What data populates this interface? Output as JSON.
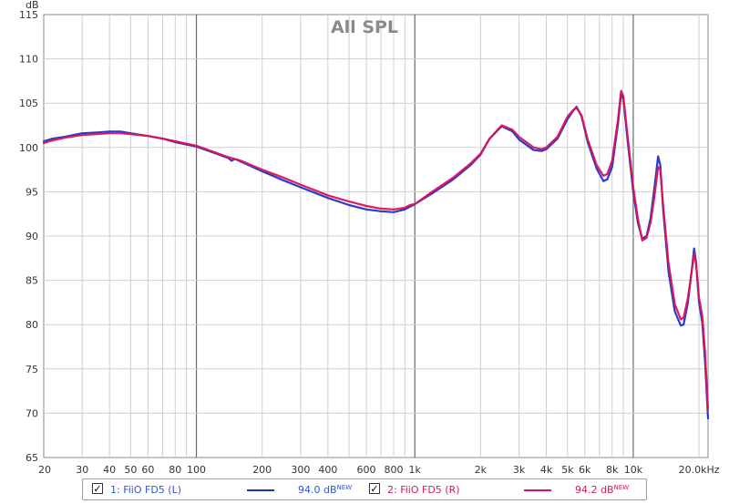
{
  "chart_data": {
    "type": "line",
    "title": "All SPL",
    "ylabel": "dB",
    "xlabel": "",
    "x_scale": "log",
    "xlim": [
      20,
      22000
    ],
    "ylim": [
      65,
      115
    ],
    "y_ticks": [
      65,
      70,
      75,
      80,
      85,
      90,
      95,
      100,
      105,
      110,
      115
    ],
    "x_ticks": [
      {
        "value": 20,
        "label": "20"
      },
      {
        "value": 30,
        "label": "30"
      },
      {
        "value": 40,
        "label": "40"
      },
      {
        "value": 50,
        "label": "50"
      },
      {
        "value": 60,
        "label": "60"
      },
      {
        "value": 80,
        "label": "80"
      },
      {
        "value": 100,
        "label": "100"
      },
      {
        "value": 200,
        "label": "200"
      },
      {
        "value": 300,
        "label": "300"
      },
      {
        "value": 400,
        "label": "400"
      },
      {
        "value": 600,
        "label": "600"
      },
      {
        "value": 800,
        "label": "800"
      },
      {
        "value": 1000,
        "label": "1k"
      },
      {
        "value": 2000,
        "label": "2k"
      },
      {
        "value": 3000,
        "label": "3k"
      },
      {
        "value": 4000,
        "label": "4k"
      },
      {
        "value": 5000,
        "label": "5k"
      },
      {
        "value": 6000,
        "label": "6k"
      },
      {
        "value": 8000,
        "label": "8k"
      },
      {
        "value": 10000,
        "label": "10k"
      },
      {
        "value": 20000,
        "label": "20.0kHz"
      }
    ],
    "grid": true,
    "series": [
      {
        "name": "1: FiiO FD5 (L)",
        "color": "#1a33cc",
        "points": [
          [
            20,
            100.7
          ],
          [
            22,
            101.0
          ],
          [
            25,
            101.2
          ],
          [
            30,
            101.6
          ],
          [
            35,
            101.7
          ],
          [
            40,
            101.8
          ],
          [
            45,
            101.8
          ],
          [
            50,
            101.6
          ],
          [
            60,
            101.3
          ],
          [
            70,
            101.0
          ],
          [
            80,
            100.6
          ],
          [
            100,
            100.1
          ],
          [
            120,
            99.4
          ],
          [
            140,
            98.8
          ],
          [
            145,
            98.5
          ],
          [
            150,
            98.7
          ],
          [
            160,
            98.4
          ],
          [
            200,
            97.3
          ],
          [
            250,
            96.3
          ],
          [
            300,
            95.5
          ],
          [
            400,
            94.3
          ],
          [
            500,
            93.5
          ],
          [
            600,
            93.0
          ],
          [
            700,
            92.8
          ],
          [
            800,
            92.7
          ],
          [
            900,
            93.0
          ],
          [
            1000,
            93.6
          ],
          [
            1200,
            94.8
          ],
          [
            1500,
            96.4
          ],
          [
            1800,
            98.0
          ],
          [
            2000,
            99.2
          ],
          [
            2200,
            101.0
          ],
          [
            2500,
            102.4
          ],
          [
            2800,
            101.8
          ],
          [
            3000,
            100.9
          ],
          [
            3500,
            99.7
          ],
          [
            3800,
            99.6
          ],
          [
            4000,
            99.8
          ],
          [
            4500,
            101.0
          ],
          [
            5000,
            103.2
          ],
          [
            5300,
            104.1
          ],
          [
            5500,
            104.6
          ],
          [
            5800,
            103.5
          ],
          [
            6200,
            100.5
          ],
          [
            6800,
            97.6
          ],
          [
            7300,
            96.2
          ],
          [
            7600,
            96.4
          ],
          [
            8000,
            97.8
          ],
          [
            8500,
            102.5
          ],
          [
            8800,
            106.0
          ],
          [
            9000,
            105.5
          ],
          [
            9400,
            101.0
          ],
          [
            10000,
            95.0
          ],
          [
            10500,
            91.5
          ],
          [
            11000,
            89.7
          ],
          [
            11500,
            90.0
          ],
          [
            12000,
            92.0
          ],
          [
            12500,
            95.5
          ],
          [
            13000,
            99.0
          ],
          [
            13300,
            98.0
          ],
          [
            13700,
            93.0
          ],
          [
            14500,
            86.0
          ],
          [
            15500,
            81.5
          ],
          [
            16500,
            79.9
          ],
          [
            17000,
            80.0
          ],
          [
            17800,
            82.5
          ],
          [
            18500,
            86.0
          ],
          [
            19000,
            88.6
          ],
          [
            19400,
            87.0
          ],
          [
            20000,
            82.5
          ],
          [
            20700,
            80.2
          ],
          [
            21300,
            76.0
          ],
          [
            22000,
            69.4
          ]
        ]
      },
      {
        "name": "2: FiiO FD5 (R)",
        "color": "#dd1155",
        "points": [
          [
            20,
            100.5
          ],
          [
            22,
            100.8
          ],
          [
            25,
            101.1
          ],
          [
            30,
            101.4
          ],
          [
            35,
            101.5
          ],
          [
            40,
            101.6
          ],
          [
            45,
            101.6
          ],
          [
            50,
            101.5
          ],
          [
            60,
            101.3
          ],
          [
            70,
            101.0
          ],
          [
            80,
            100.7
          ],
          [
            100,
            100.2
          ],
          [
            120,
            99.5
          ],
          [
            140,
            98.9
          ],
          [
            150,
            98.7
          ],
          [
            160,
            98.5
          ],
          [
            200,
            97.5
          ],
          [
            250,
            96.6
          ],
          [
            300,
            95.8
          ],
          [
            400,
            94.6
          ],
          [
            500,
            93.9
          ],
          [
            600,
            93.4
          ],
          [
            700,
            93.1
          ],
          [
            800,
            93.0
          ],
          [
            900,
            93.2
          ],
          [
            950,
            93.5
          ],
          [
            1000,
            93.6
          ],
          [
            1200,
            95.0
          ],
          [
            1500,
            96.6
          ],
          [
            1800,
            98.2
          ],
          [
            2000,
            99.3
          ],
          [
            2200,
            101.0
          ],
          [
            2500,
            102.5
          ],
          [
            2800,
            102.0
          ],
          [
            3000,
            101.2
          ],
          [
            3500,
            100.0
          ],
          [
            3800,
            99.8
          ],
          [
            4000,
            100.0
          ],
          [
            4500,
            101.2
          ],
          [
            5000,
            103.5
          ],
          [
            5300,
            104.2
          ],
          [
            5500,
            104.5
          ],
          [
            5800,
            103.6
          ],
          [
            6200,
            100.8
          ],
          [
            6800,
            98.0
          ],
          [
            7300,
            96.8
          ],
          [
            7600,
            97.0
          ],
          [
            8000,
            98.5
          ],
          [
            8500,
            103.0
          ],
          [
            8800,
            106.4
          ],
          [
            9000,
            105.8
          ],
          [
            9400,
            101.5
          ],
          [
            10000,
            95.5
          ],
          [
            10500,
            92.0
          ],
          [
            11000,
            89.5
          ],
          [
            11500,
            89.8
          ],
          [
            12000,
            91.5
          ],
          [
            12500,
            94.5
          ],
          [
            13000,
            97.8
          ],
          [
            13300,
            97.5
          ],
          [
            13700,
            93.5
          ],
          [
            14500,
            87.0
          ],
          [
            15500,
            82.3
          ],
          [
            16500,
            80.6
          ],
          [
            17000,
            80.8
          ],
          [
            17800,
            83.0
          ],
          [
            18500,
            86.0
          ],
          [
            19000,
            88.0
          ],
          [
            19400,
            86.8
          ],
          [
            20000,
            83.0
          ],
          [
            20700,
            81.0
          ],
          [
            21300,
            77.0
          ],
          [
            22000,
            70.5
          ]
        ]
      }
    ]
  },
  "legend": {
    "items": [
      {
        "checked_glyph": "✓",
        "label": "1: FiiO FD5 (L)",
        "level": "94.0 dB",
        "badge": "NEW",
        "color": "#1a33cc",
        "label_color": "#3355cc"
      },
      {
        "checked_glyph": "✓",
        "label": "2: FiiO FD5 (R)",
        "level": "94.2 dB",
        "badge": "NEW",
        "color": "#dd1155",
        "label_color": "#cc2255"
      }
    ]
  }
}
